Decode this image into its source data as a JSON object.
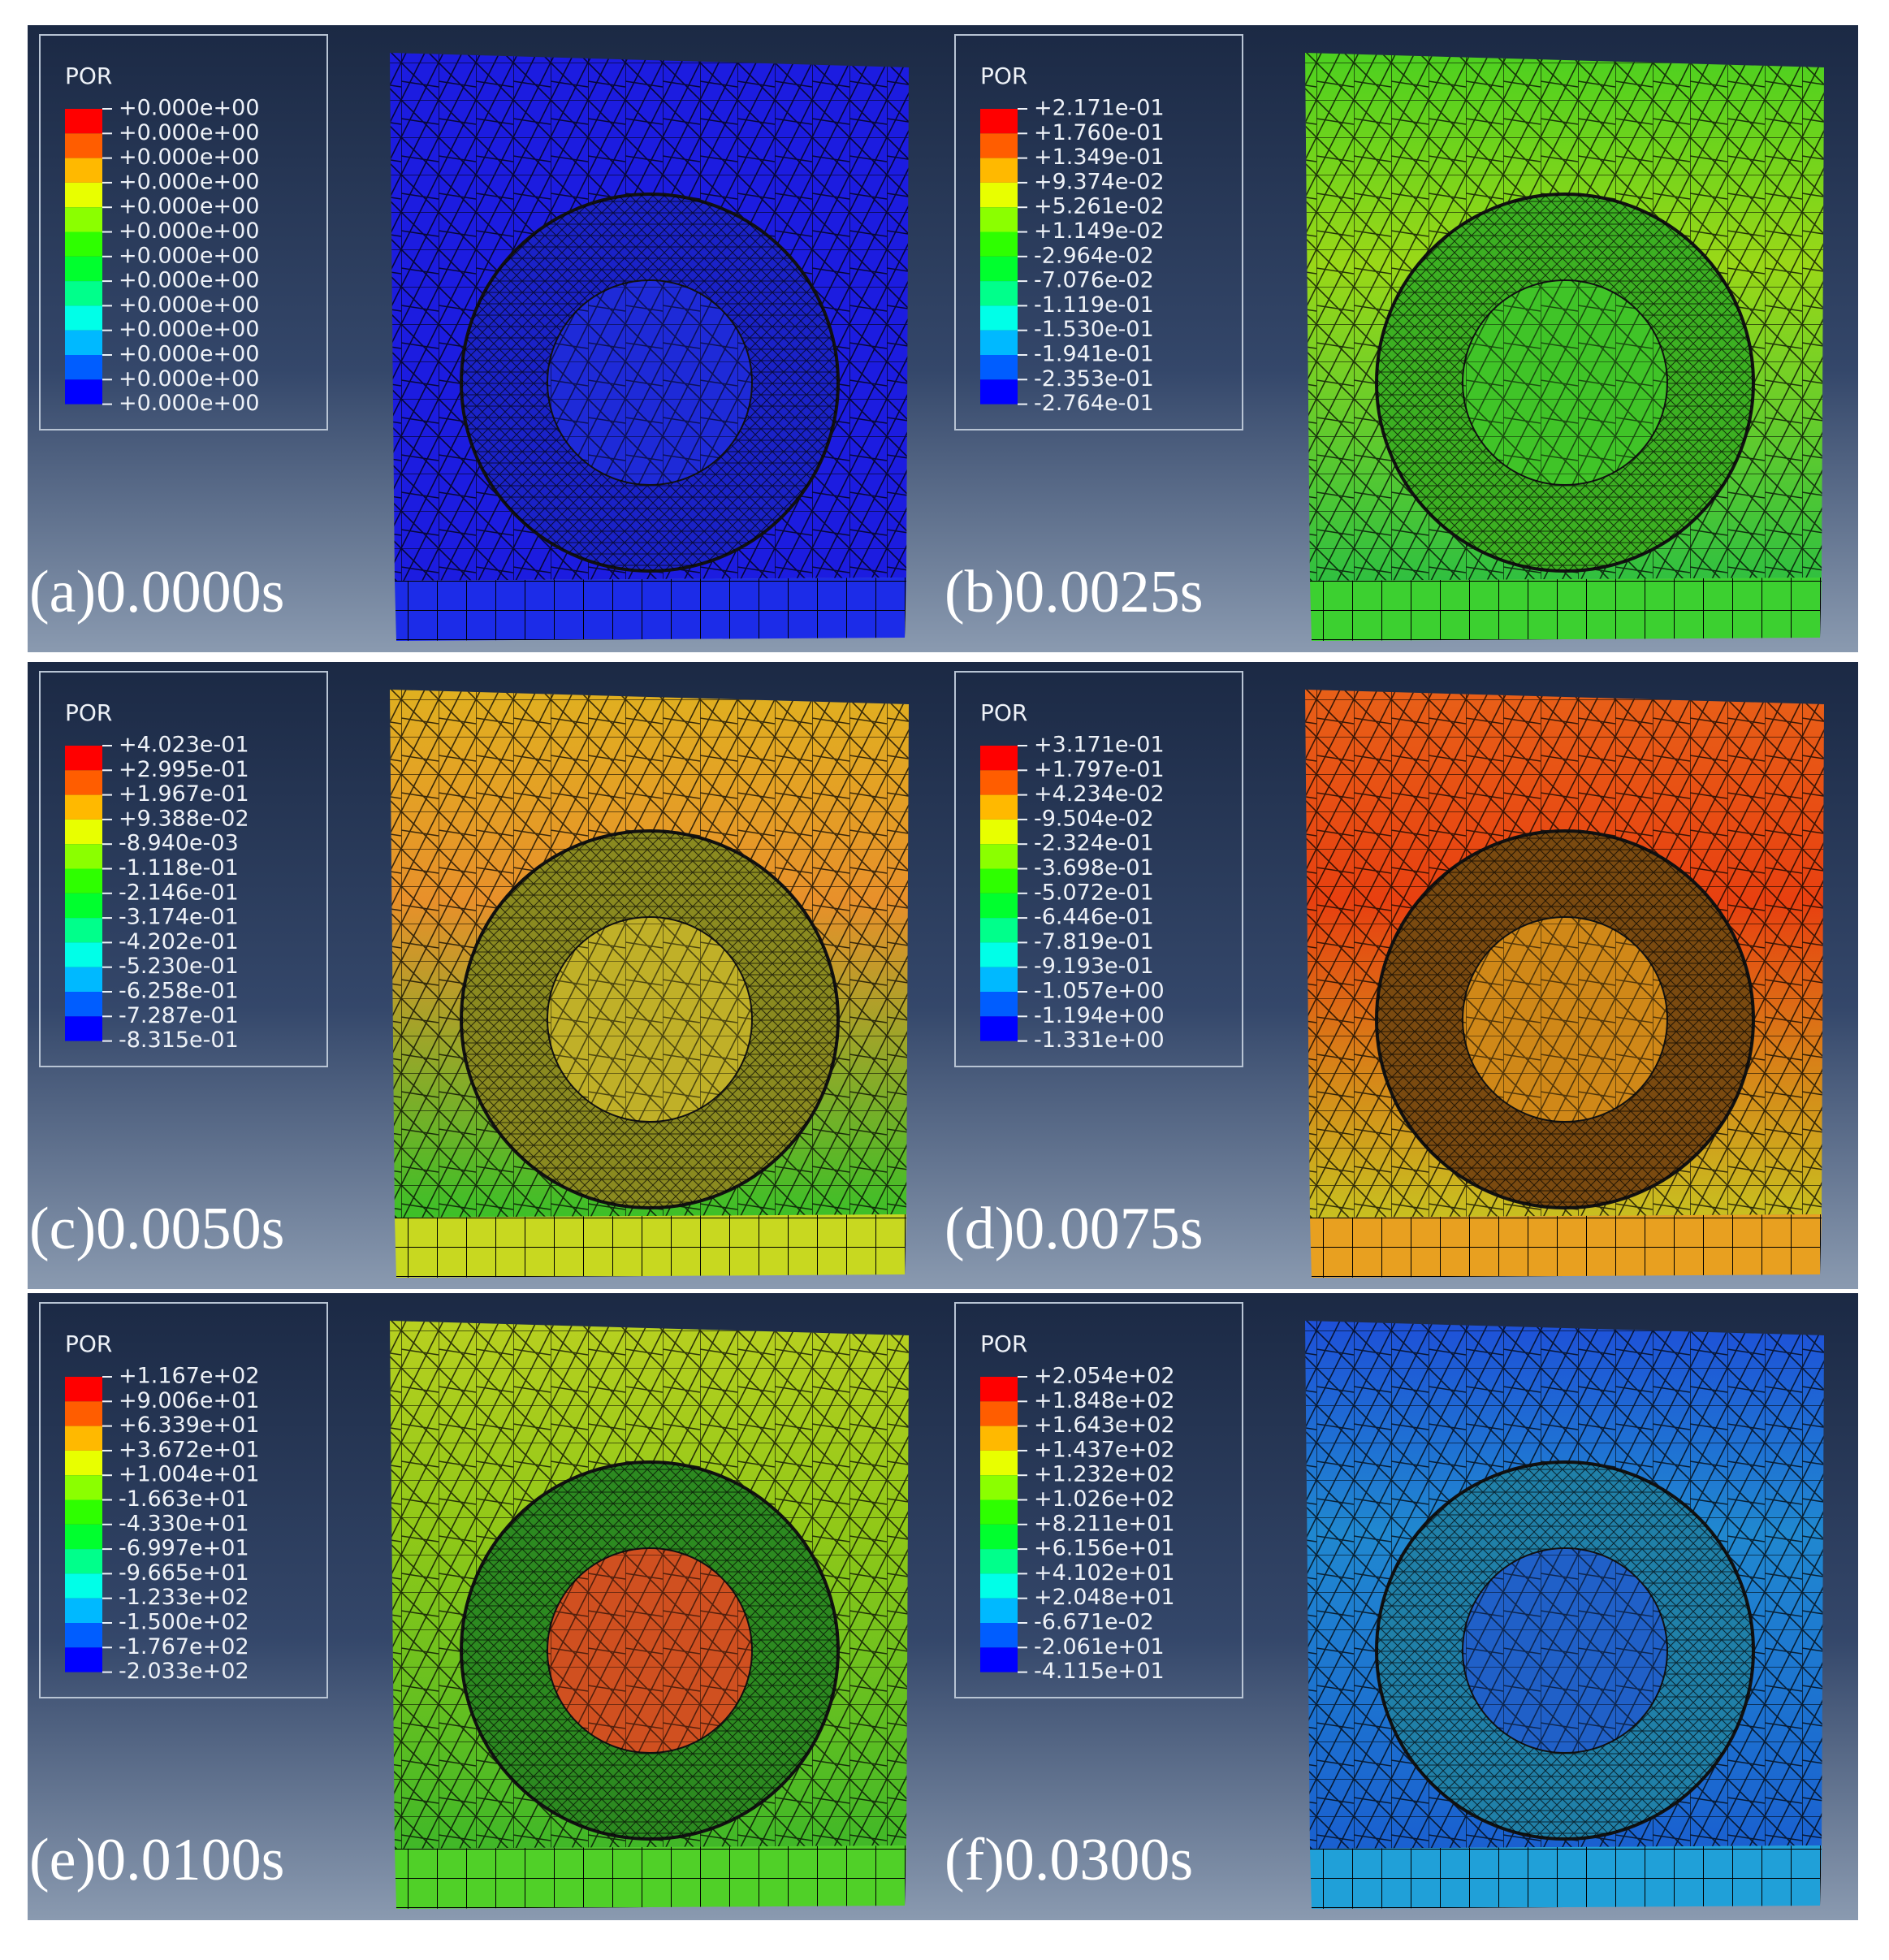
{
  "panels": [
    {
      "title": "POR",
      "caption": "(a)0.0000s",
      "labels": [
        "+0.000e+00",
        "+0.000e+00",
        "+0.000e+00",
        "+0.000e+00",
        "+0.000e+00",
        "+0.000e+00",
        "+0.000e+00",
        "+0.000e+00",
        "+0.000e+00",
        "+0.000e+00",
        "+0.000e+00",
        "+0.000e+00",
        "+0.000e+00"
      ]
    },
    {
      "title": "POR",
      "caption": "(b)0.0025s",
      "labels": [
        "+2.171e-01",
        "+1.760e-01",
        "+1.349e-01",
        "+9.374e-02",
        "+5.261e-02",
        "+1.149e-02",
        "-2.964e-02",
        "-7.076e-02",
        "-1.119e-01",
        "-1.530e-01",
        "-1.941e-01",
        "-2.353e-01",
        "-2.764e-01"
      ]
    },
    {
      "title": "POR",
      "caption": "(c)0.0050s",
      "labels": [
        "+4.023e-01",
        "+2.995e-01",
        "+1.967e-01",
        "+9.388e-02",
        "-8.940e-03",
        "-1.118e-01",
        "-2.146e-01",
        "-3.174e-01",
        "-4.202e-01",
        "-5.230e-01",
        "-6.258e-01",
        "-7.287e-01",
        "-8.315e-01"
      ]
    },
    {
      "title": "POR",
      "caption": "(d)0.0075s",
      "labels": [
        "+3.171e-01",
        "+1.797e-01",
        "+4.234e-02",
        "-9.504e-02",
        "-2.324e-01",
        "-3.698e-01",
        "-5.072e-01",
        "-6.446e-01",
        "-7.819e-01",
        "-9.193e-01",
        "-1.057e+00",
        "-1.194e+00",
        "-1.331e+00"
      ]
    },
    {
      "title": "POR",
      "caption": "(e)0.0100s",
      "labels": [
        "+1.167e+02",
        "+9.006e+01",
        "+6.339e+01",
        "+3.672e+01",
        "+1.004e+01",
        "-1.663e+01",
        "-4.330e+01",
        "-6.997e+01",
        "-9.665e+01",
        "-1.233e+02",
        "-1.500e+02",
        "-1.767e+02",
        "-2.033e+02"
      ]
    },
    {
      "title": "POR",
      "caption": "(f)0.0300s",
      "labels": [
        "+2.054e+02",
        "+1.848e+02",
        "+1.643e+02",
        "+1.437e+02",
        "+1.232e+02",
        "+1.026e+02",
        "+8.211e+01",
        "+6.156e+01",
        "+4.102e+01",
        "+2.048e+01",
        "-6.671e-02",
        "-2.061e+01",
        "-4.115e+01"
      ]
    }
  ]
}
